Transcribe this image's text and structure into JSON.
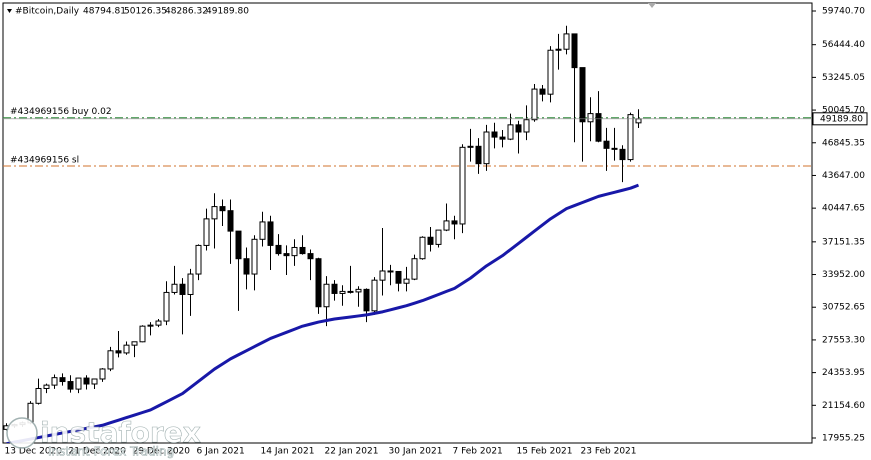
{
  "chart_data": {
    "type": "candlestick",
    "symbol": "#Bitcoin,Daily",
    "header_prices": [
      "48794.81",
      "50126.35",
      "48286.32",
      "49189.80"
    ],
    "categories": [
      "13 Dec 2020",
      null,
      null,
      null,
      null,
      null,
      null,
      null,
      "21 Dec 2020",
      null,
      null,
      null,
      null,
      null,
      null,
      null,
      "29 Dec 2020",
      null,
      null,
      null,
      null,
      null,
      null,
      null,
      "6 Jan 2021",
      null,
      null,
      null,
      null,
      null,
      null,
      null,
      "14 Jan 2021",
      null,
      null,
      null,
      null,
      null,
      null,
      null,
      "22 Jan 2021",
      null,
      null,
      null,
      null,
      null,
      null,
      null,
      "30 Jan 2021",
      null,
      null,
      null,
      null,
      null,
      null,
      null,
      "7 Feb 2021",
      null,
      null,
      null,
      null,
      null,
      null,
      null,
      "15 Feb 2021",
      null,
      null,
      null,
      null,
      null,
      null,
      null,
      "23 Feb 2021",
      null,
      null,
      null,
      null,
      null,
      null,
      null
    ],
    "open": [
      18800,
      19150,
      19270,
      19440,
      21350,
      22800,
      23130,
      23860,
      23480,
      22740,
      23820,
      23240,
      23730,
      24710,
      26490,
      26280,
      27040,
      27370,
      28900,
      29000,
      29400,
      32200,
      33000,
      32000,
      34000,
      36800,
      39400,
      40600,
      40200,
      38200,
      35500,
      34000,
      37400,
      39100,
      36800,
      36000,
      35800,
      36600,
      36000,
      35500,
      30800,
      33000,
      32100,
      32300,
      32250,
      32500,
      30400,
      33400,
      34300,
      34250,
      33100,
      33500,
      35500,
      37600,
      36900,
      38300,
      39200,
      38900,
      46400,
      46500,
      44800,
      47900,
      47400,
      47200,
      48600,
      47900,
      49100,
      52100,
      51600,
      55900,
      56000,
      57500,
      54200,
      48900,
      49700,
      47000,
      46300,
      46200,
      45200,
      48794.81
    ],
    "high": [
      19400,
      19350,
      19570,
      21560,
      23770,
      23280,
      24170,
      24280,
      24100,
      23840,
      24100,
      23780,
      24790,
      26870,
      28420,
      27400,
      27370,
      28990,
      29300,
      29600,
      33300,
      34800,
      33600,
      34500,
      36900,
      40400,
      41900,
      41300,
      41300,
      38200,
      36600,
      37800,
      40100,
      39700,
      37900,
      36800,
      37400,
      37800,
      36400,
      35600,
      33800,
      33400,
      32900,
      34800,
      32800,
      32600,
      33700,
      38500,
      34900,
      34300,
      34700,
      35900,
      37700,
      38600,
      38300,
      40900,
      39700,
      46700,
      48200,
      47300,
      48600,
      48800,
      48100,
      49700,
      49000,
      50500,
      52600,
      52500,
      56300,
      57500,
      58300,
      57500,
      54200,
      51300,
      51900,
      48300,
      48300,
      46600,
      49800,
      50126.35
    ],
    "low": [
      18700,
      18950,
      19050,
      19300,
      21230,
      22350,
      22760,
      23080,
      22400,
      22350,
      22700,
      22750,
      23450,
      24500,
      25850,
      26100,
      25870,
      27320,
      28000,
      28800,
      29000,
      32000,
      28100,
      29900,
      33400,
      36300,
      36500,
      38700,
      35000,
      30400,
      32500,
      32400,
      36700,
      34400,
      35800,
      33900,
      34800,
      35900,
      33400,
      30100,
      28900,
      31400,
      30900,
      32100,
      30800,
      29300,
      30000,
      31900,
      32900,
      32300,
      32300,
      33400,
      35400,
      36200,
      36600,
      38200,
      37400,
      38000,
      45000,
      43800,
      44100,
      46300,
      46400,
      47100,
      45800,
      47100,
      48900,
      50900,
      50800,
      54000,
      55500,
      46900,
      45000,
      47000,
      46900,
      44100,
      45100,
      43000,
      45000,
      48286.32
    ],
    "close": [
      19150,
      19270,
      19440,
      21350,
      22800,
      23130,
      23860,
      23480,
      22740,
      23820,
      23240,
      23730,
      24710,
      26490,
      26280,
      27040,
      27370,
      28900,
      29000,
      29400,
      32200,
      33000,
      32000,
      34000,
      36800,
      39400,
      40600,
      40200,
      38200,
      35500,
      34000,
      37400,
      39100,
      36800,
      36000,
      35800,
      36600,
      36000,
      35500,
      30800,
      33000,
      32100,
      32300,
      32250,
      32500,
      30400,
      33400,
      34300,
      34250,
      33100,
      33500,
      35500,
      37600,
      36900,
      38300,
      39200,
      38900,
      46400,
      46500,
      44800,
      47900,
      47400,
      47200,
      48600,
      47900,
      49100,
      52100,
      51600,
      55900,
      56000,
      57500,
      54200,
      48900,
      49700,
      47000,
      46300,
      46200,
      45200,
      49600,
      49189.8
    ],
    "ma": {
      "color": "#1818a8",
      "values": [
        17400,
        17550,
        17700,
        17850,
        18000,
        18150,
        18300,
        18450,
        18600,
        18750,
        18900,
        19050,
        19200,
        19450,
        19700,
        19950,
        20200,
        20450,
        20700,
        21100,
        21500,
        21900,
        22300,
        22900,
        23500,
        24100,
        24700,
        25200,
        25700,
        26100,
        26500,
        26900,
        27300,
        27700,
        28000,
        28300,
        28600,
        28900,
        29100,
        29300,
        29450,
        29600,
        29700,
        29800,
        29900,
        30000,
        30150,
        30300,
        30500,
        30700,
        30900,
        31150,
        31400,
        31700,
        32000,
        32300,
        32600,
        33100,
        33600,
        34200,
        34800,
        35300,
        35800,
        36400,
        37000,
        37600,
        38200,
        38800,
        39400,
        39900,
        40400,
        40700,
        41000,
        41300,
        41600,
        41800,
        42000,
        42200,
        42400,
        42700
      ]
    },
    "orders": [
      {
        "label": "#434969156 buy 0.02",
        "value": 49300,
        "color": "#2e8b3a"
      },
      {
        "label": "#434969156 sl",
        "value": 44570,
        "color": "#d2732e"
      }
    ],
    "bid": {
      "value": 49189.8,
      "label": "49189.80"
    },
    "ylim": [
      17466,
      60523
    ],
    "yticks": [
      {
        "value": 59740.7,
        "label": "59740.70"
      },
      {
        "value": 56444.4,
        "label": "56444.40"
      },
      53245.05,
      {
        "value": 50045.7,
        "label": "50045.70"
      },
      46845.35,
      {
        "value": 43647,
        "label": "43647.00"
      },
      40447.65,
      37151.35,
      {
        "value": 33952,
        "label": "33952.00"
      },
      30752.65,
      {
        "value": 27553.3,
        "label": "27553.30"
      },
      24353.95,
      {
        "value": 21154.6,
        "label": "21154.60"
      },
      17955.25
    ],
    "watermark": {
      "brand": "instaforex",
      "tagline": "Instant Forex Trading"
    }
  }
}
